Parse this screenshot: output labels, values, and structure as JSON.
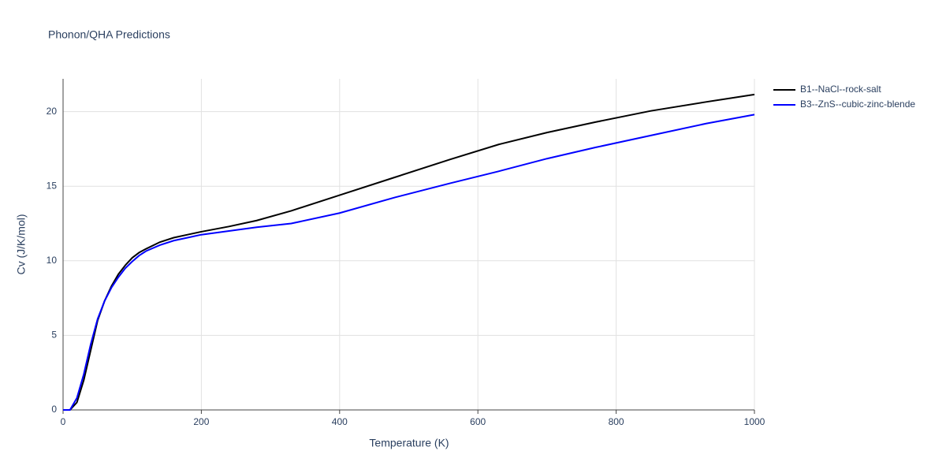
{
  "chart_data": {
    "type": "line",
    "title": "Phonon/QHA Predictions",
    "x_label": "Temperature (K)",
    "y_label": "Cv (J/K/mol)",
    "x": [
      0,
      10,
      20,
      30,
      40,
      50,
      60,
      70,
      80,
      90,
      100,
      110,
      120,
      140,
      160,
      180,
      200,
      240,
      280,
      330,
      400,
      480,
      560,
      630,
      700,
      770,
      850,
      930,
      1000
    ],
    "series": [
      {
        "name": "B1--NaCl--rock-salt",
        "color": "#000000",
        "values": [
          0,
          0,
          0.5,
          2,
          4,
          6,
          7.3,
          8.3,
          9.1,
          9.7,
          10.2,
          10.55,
          10.8,
          11.25,
          11.55,
          11.75,
          11.95,
          12.3,
          12.7,
          13.35,
          14.4,
          15.6,
          16.8,
          17.8,
          18.6,
          19.3,
          20.05,
          20.65,
          21.15
        ]
      },
      {
        "name": "B3--ZnS--cubic-zinc-blende",
        "color": "#0000ff",
        "values": [
          0,
          0,
          0.8,
          2.4,
          4.4,
          6.1,
          7.3,
          8.2,
          8.9,
          9.5,
          9.95,
          10.35,
          10.65,
          11.05,
          11.35,
          11.55,
          11.75,
          12.0,
          12.25,
          12.5,
          13.2,
          14.25,
          15.2,
          16.0,
          16.85,
          17.6,
          18.4,
          19.2,
          19.8
        ]
      }
    ],
    "xlim": [
      0,
      1000
    ],
    "xticks": [
      0,
      200,
      400,
      600,
      800,
      1000
    ],
    "ylim": [
      0,
      22.2
    ],
    "yticks": [
      0,
      5,
      10,
      15,
      20
    ],
    "grid": true
  }
}
